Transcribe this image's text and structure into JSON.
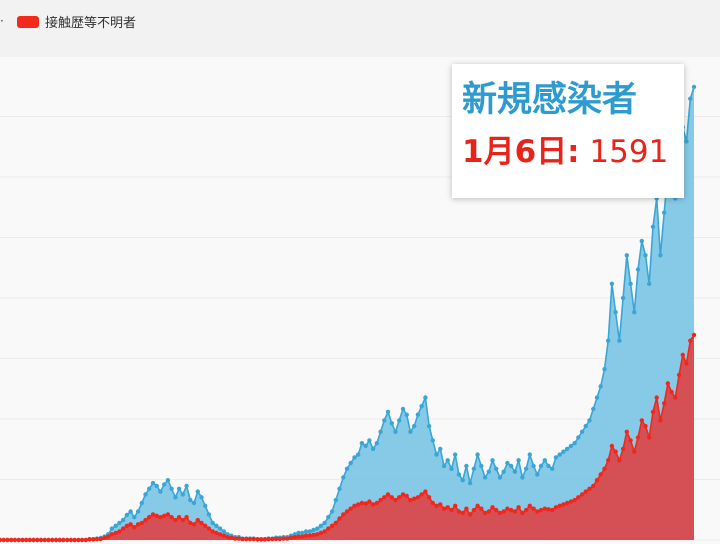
{
  "legend": {
    "stub": "·",
    "items": [
      {
        "label": "接触歴等不明者",
        "color": "#f22a1c"
      }
    ]
  },
  "tooltip": {
    "title": "新規感染者",
    "date_label": "1月6日:",
    "value": "1591"
  },
  "colors": {
    "total_line": "#3aa6d6",
    "total_fill": "#72c2e4",
    "unknown_line": "#f2271c",
    "unknown_fill": "#d9494c"
  },
  "chart_data": {
    "type": "area",
    "title": "",
    "xlabel": "",
    "ylabel": "",
    "ylim": [
      0,
      1700
    ],
    "grid": true,
    "legend_position": "top-left",
    "series": [
      {
        "name": "新規感染者",
        "values": [
          0,
          0,
          0,
          0,
          0,
          0,
          0,
          0,
          0,
          0,
          0,
          0,
          0,
          0,
          0,
          0,
          0,
          0,
          0,
          0,
          0,
          0,
          0,
          0,
          3,
          3,
          5,
          7,
          12,
          20,
          40,
          50,
          60,
          70,
          88,
          100,
          80,
          100,
          130,
          160,
          180,
          200,
          190,
          170,
          195,
          210,
          180,
          150,
          180,
          160,
          190,
          140,
          130,
          170,
          150,
          120,
          90,
          60,
          50,
          40,
          30,
          20,
          15,
          10,
          10,
          5,
          5,
          5,
          5,
          3,
          3,
          3,
          5,
          5,
          8,
          8,
          10,
          10,
          15,
          20,
          25,
          25,
          30,
          30,
          35,
          40,
          50,
          60,
          80,
          100,
          140,
          180,
          220,
          250,
          270,
          290,
          300,
          340,
          330,
          350,
          320,
          340,
          380,
          420,
          450,
          410,
          380,
          420,
          460,
          440,
          380,
          400,
          440,
          470,
          500,
          400,
          350,
          300,
          320,
          260,
          280,
          250,
          300,
          230,
          210,
          260,
          200,
          250,
          300,
          260,
          220,
          240,
          280,
          250,
          220,
          240,
          270,
          260,
          240,
          280,
          220,
          250,
          300,
          260,
          230,
          260,
          280,
          260,
          250,
          290,
          300,
          310,
          320,
          330,
          340,
          360,
          380,
          400,
          420,
          460,
          500,
          540,
          600,
          700,
          900,
          800,
          700,
          850,
          1000,
          900,
          800,
          950,
          1050,
          1000,
          900,
          1100,
          1200,
          1000,
          1150,
          1300,
          1250,
          1200,
          1350,
          1450,
          1400,
          1550,
          1591
        ]
      },
      {
        "name": "接触歴等不明者",
        "values": [
          0,
          0,
          0,
          0,
          0,
          0,
          0,
          0,
          0,
          0,
          0,
          0,
          0,
          0,
          0,
          0,
          0,
          0,
          0,
          0,
          0,
          0,
          0,
          0,
          2,
          2,
          3,
          4,
          8,
          12,
          20,
          25,
          30,
          40,
          50,
          55,
          45,
          55,
          60,
          70,
          80,
          90,
          85,
          80,
          85,
          90,
          80,
          70,
          80,
          70,
          80,
          60,
          55,
          70,
          60,
          50,
          40,
          30,
          25,
          20,
          15,
          10,
          8,
          5,
          5,
          3,
          3,
          3,
          3,
          2,
          2,
          2,
          3,
          3,
          4,
          4,
          5,
          5,
          8,
          10,
          12,
          12,
          15,
          15,
          18,
          20,
          25,
          30,
          40,
          50,
          60,
          75,
          90,
          100,
          110,
          120,
          125,
          130,
          128,
          135,
          125,
          130,
          140,
          150,
          160,
          150,
          140,
          150,
          160,
          155,
          140,
          145,
          150,
          160,
          170,
          150,
          130,
          120,
          125,
          110,
          115,
          105,
          120,
          100,
          95,
          110,
          90,
          105,
          120,
          110,
          95,
          100,
          115,
          105,
          95,
          100,
          110,
          105,
          100,
          115,
          95,
          105,
          120,
          110,
          100,
          105,
          110,
          108,
          105,
          115,
          120,
          125,
          130,
          135,
          140,
          150,
          160,
          170,
          180,
          190,
          210,
          230,
          250,
          280,
          330,
          310,
          280,
          320,
          380,
          350,
          310,
          360,
          420,
          400,
          360,
          450,
          500,
          420,
          480,
          550,
          520,
          500,
          580,
          650,
          620,
          700,
          720
        ]
      }
    ]
  }
}
